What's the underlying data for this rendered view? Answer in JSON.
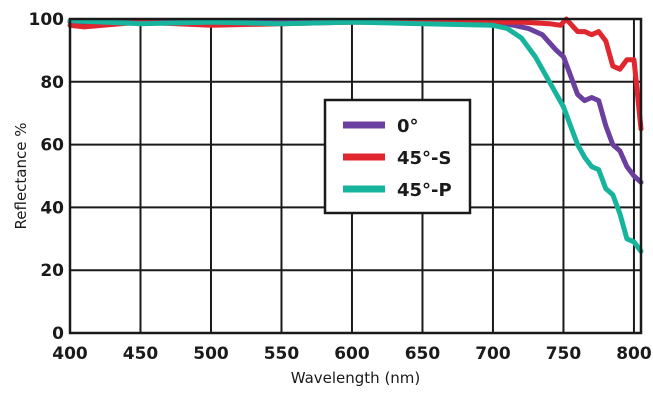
{
  "chart_data": {
    "type": "line",
    "title": "",
    "xlabel": "Wavelength (nm)",
    "ylabel": "Reflectance %",
    "xlim": [
      400,
      805
    ],
    "ylim": [
      0,
      100
    ],
    "x_ticks": [
      400,
      450,
      500,
      550,
      600,
      650,
      700,
      750,
      800
    ],
    "y_ticks": [
      0,
      20,
      40,
      60,
      80,
      100
    ],
    "grid": true,
    "legend_position": "center-right",
    "series": [
      {
        "name": "0°",
        "color": "#6a3fa0",
        "x": [
          400,
          450,
          500,
          550,
          600,
          650,
          700,
          715,
          725,
          735,
          745,
          750,
          755,
          760,
          765,
          770,
          775,
          780,
          785,
          790,
          795,
          800,
          805
        ],
        "y": [
          99,
          99,
          99,
          99,
          99,
          99,
          99,
          98,
          97,
          95,
          90,
          88,
          82,
          76,
          74,
          75,
          74,
          66,
          60,
          58,
          53,
          50,
          48
        ]
      },
      {
        "name": "45°-S",
        "color": "#e0262f",
        "x": [
          400,
          410,
          450,
          500,
          550,
          600,
          650,
          700,
          720,
          740,
          748,
          752,
          756,
          760,
          765,
          770,
          775,
          780,
          785,
          790,
          795,
          800,
          805
        ],
        "y": [
          98,
          97.5,
          99,
          98,
          98.5,
          99,
          99,
          99,
          99,
          98.5,
          98,
          100,
          98,
          96,
          96,
          95,
          96,
          93,
          85,
          84,
          87,
          87,
          65
        ]
      },
      {
        "name": "45°-P",
        "color": "#17b49d",
        "x": [
          400,
          450,
          500,
          550,
          600,
          650,
          700,
          710,
          720,
          730,
          740,
          750,
          755,
          760,
          765,
          770,
          775,
          780,
          785,
          790,
          795,
          800,
          805
        ],
        "y": [
          99.5,
          98.5,
          99,
          98.5,
          99,
          98.5,
          98,
          97,
          94,
          88,
          80,
          72,
          66,
          60,
          56,
          53,
          52,
          46,
          44,
          38,
          30,
          29,
          26
        ]
      }
    ]
  }
}
